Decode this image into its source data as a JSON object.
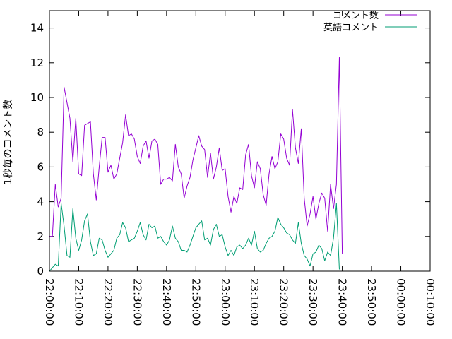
{
  "chart_data": {
    "type": "line",
    "ylabel": "1秒毎のコメント数",
    "ylim": [
      0,
      15
    ],
    "yticks": [
      "0",
      "2",
      "4",
      "6",
      "8",
      "10",
      "12",
      "14"
    ],
    "xlim_minutes": [
      0,
      130
    ],
    "xticks": [
      "22:00:00",
      "22:10:00",
      "22:20:00",
      "22:30:00",
      "22:40:00",
      "22:50:00",
      "23:00:00",
      "23:10:00",
      "23:20:00",
      "23:30:00",
      "23:40:00",
      "23:50:00",
      "00:00:00",
      "00:10:00"
    ],
    "grid": false,
    "legend_position": "top-right",
    "series": [
      {
        "name": "コメント数",
        "color": "#9400d3",
        "x_start_minutes": 0,
        "x_step_minutes": 1,
        "values": [
          2.0,
          2.0,
          5.0,
          3.7,
          4.2,
          10.6,
          9.7,
          8.8,
          6.3,
          8.8,
          5.6,
          5.5,
          8.4,
          8.5,
          8.6,
          5.6,
          4.1,
          6.0,
          7.7,
          7.7,
          5.7,
          6.1,
          5.3,
          5.6,
          6.5,
          7.4,
          9.0,
          7.8,
          7.9,
          7.6,
          6.6,
          6.2,
          7.2,
          7.5,
          6.5,
          7.5,
          7.6,
          7.3,
          5.0,
          5.3,
          5.3,
          5.4,
          5.2,
          7.3,
          6.0,
          5.6,
          4.2,
          4.9,
          5.4,
          6.4,
          7.1,
          7.8,
          7.2,
          7.0,
          5.4,
          6.8,
          5.3,
          6.0,
          7.1,
          5.8,
          5.9,
          4.3,
          3.4,
          4.3,
          3.9,
          4.8,
          4.7,
          6.7,
          7.3,
          5.5,
          4.8,
          6.3,
          5.9,
          4.4,
          3.8,
          5.6,
          6.6,
          5.9,
          6.3,
          7.9,
          7.6,
          6.5,
          6.1,
          9.3,
          7.1,
          6.2,
          8.2,
          4.2,
          2.6,
          3.3,
          4.3,
          3.0,
          3.9,
          4.5,
          4.2,
          2.3,
          5.0,
          3.6,
          5.0,
          12.3,
          1.0
        ]
      },
      {
        "name": "英語コメント",
        "color": "#009e73",
        "x_start_minutes": 0,
        "x_step_minutes": 1,
        "values": [
          0.0,
          0.2,
          0.4,
          0.3,
          3.9,
          2.6,
          0.9,
          0.8,
          3.6,
          1.9,
          1.2,
          1.8,
          2.9,
          3.3,
          1.7,
          0.9,
          1.0,
          1.9,
          1.8,
          1.2,
          0.8,
          1.0,
          1.2,
          1.9,
          2.1,
          2.8,
          2.5,
          1.7,
          1.8,
          1.9,
          2.3,
          2.8,
          2.1,
          1.8,
          2.7,
          2.5,
          2.6,
          1.9,
          2.0,
          1.7,
          1.5,
          1.8,
          2.6,
          1.9,
          1.7,
          1.2,
          1.2,
          1.1,
          1.5,
          2.0,
          2.5,
          2.7,
          2.9,
          1.8,
          1.9,
          1.5,
          2.4,
          2.7,
          2.0,
          2.1,
          1.4,
          0.9,
          1.2,
          0.9,
          1.4,
          1.5,
          1.3,
          1.5,
          1.9,
          1.5,
          2.3,
          1.3,
          1.1,
          1.2,
          1.6,
          1.9,
          2.0,
          2.3,
          3.1,
          2.7,
          2.5,
          2.2,
          2.1,
          1.8,
          1.6,
          2.8,
          1.6,
          0.9,
          0.7,
          0.3,
          1.0,
          1.1,
          1.5,
          1.3,
          0.6,
          1.1,
          0.9,
          1.9,
          3.9,
          0.1
        ]
      }
    ]
  }
}
